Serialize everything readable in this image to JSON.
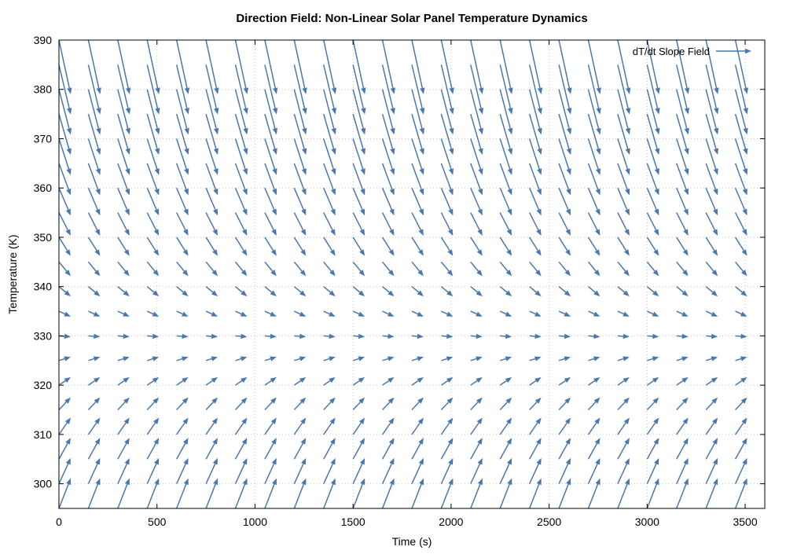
{
  "chart_data": {
    "type": "quiver",
    "title": "Direction Field: Non-Linear Solar Panel Temperature Dynamics",
    "xlabel": "Time (s)",
    "ylabel": "Temperature (K)",
    "xlim": [
      0,
      3600
    ],
    "ylim": [
      295,
      390
    ],
    "xticks": [
      0,
      500,
      1000,
      1500,
      2000,
      2500,
      3000,
      3500
    ],
    "yticks": [
      300,
      310,
      320,
      330,
      340,
      350,
      360,
      370,
      380,
      390
    ],
    "grid": true,
    "legend": {
      "label": "dT/dt Slope Field",
      "placement": "top-right"
    },
    "color": "#4a78ad",
    "arrow_dt": 60,
    "x_start": 0,
    "x_step": 150,
    "x_count": 24,
    "rows": [
      {
        "T": 295,
        "slope": 0.102
      },
      {
        "T": 300,
        "slope": 0.087
      },
      {
        "T": 305,
        "slope": 0.072
      },
      {
        "T": 310,
        "slope": 0.057
      },
      {
        "T": 315,
        "slope": 0.042
      },
      {
        "T": 320,
        "slope": 0.027
      },
      {
        "T": 325,
        "slope": 0.012
      },
      {
        "T": 330,
        "slope": -0.003
      },
      {
        "T": 335,
        "slope": -0.018
      },
      {
        "T": 340,
        "slope": -0.033
      },
      {
        "T": 345,
        "slope": -0.048
      },
      {
        "T": 350,
        "slope": -0.063
      },
      {
        "T": 355,
        "slope": -0.078
      },
      {
        "T": 360,
        "slope": -0.093
      },
      {
        "T": 365,
        "slope": -0.108
      },
      {
        "T": 370,
        "slope": -0.123
      },
      {
        "T": 375,
        "slope": -0.138
      },
      {
        "T": 380,
        "slope": -0.153
      },
      {
        "T": 385,
        "slope": -0.168
      },
      {
        "T": 390,
        "slope": -0.183
      }
    ]
  }
}
